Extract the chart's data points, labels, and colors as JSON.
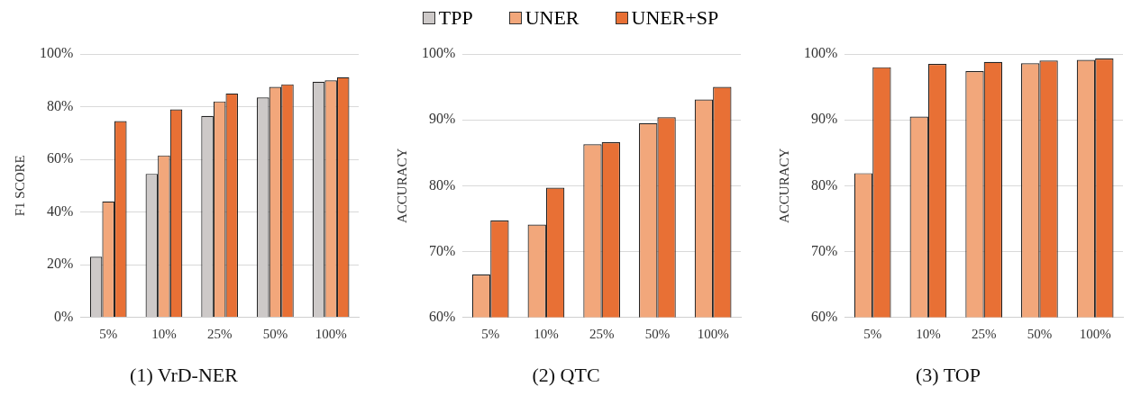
{
  "chart_data": [
    {
      "type": "bar",
      "title": "(1) VrD-NER",
      "ylabel": "F1 SCORE",
      "categories": [
        "5%",
        "10%",
        "25%",
        "50%",
        "100%"
      ],
      "legend": "top",
      "grid": "y",
      "ylim": [
        0,
        100
      ],
      "yticks": [
        {
          "value": 0,
          "label": "0%"
        },
        {
          "value": 20,
          "label": "20%"
        },
        {
          "value": 40,
          "label": "40%"
        },
        {
          "value": 60,
          "label": "60%"
        },
        {
          "value": 80,
          "label": "80%"
        },
        {
          "value": 100,
          "label": "100%"
        }
      ],
      "series": [
        {
          "name": "TPP",
          "color": "#cdc9c8",
          "values": [
            23,
            54.5,
            76.5,
            83.5,
            89.5
          ]
        },
        {
          "name": "UNER",
          "color": "#f2a77b",
          "values": [
            44,
            61.5,
            82,
            87.5,
            90
          ]
        },
        {
          "name": "UNER+SP",
          "color": "#e87035",
          "values": [
            74.5,
            79,
            85,
            88.5,
            91.2
          ]
        }
      ]
    },
    {
      "type": "bar",
      "title": "(2) QTC",
      "ylabel": "ACCURACY",
      "categories": [
        "5%",
        "10%",
        "25%",
        "50%",
        "100%"
      ],
      "grid": "y",
      "ylim": [
        60,
        100
      ],
      "yticks": [
        {
          "value": 60,
          "label": "60%"
        },
        {
          "value": 70,
          "label": "70%"
        },
        {
          "value": 80,
          "label": "80%"
        },
        {
          "value": 90,
          "label": "90%"
        },
        {
          "value": 100,
          "label": "100%"
        }
      ],
      "series": [
        {
          "color": "#f2a77b",
          "values": [
            66.5,
            74.1,
            86.3,
            89.5,
            93.1
          ]
        },
        {
          "color": "#e87035",
          "values": [
            74.7,
            79.7,
            86.6,
            90.4,
            95.0
          ]
        }
      ]
    },
    {
      "type": "bar",
      "title": "(3) TOP",
      "ylabel": "ACCURACY",
      "categories": [
        "5%",
        "10%",
        "25%",
        "50%",
        "100%"
      ],
      "grid": "y",
      "ylim": [
        60,
        100
      ],
      "yticks": [
        {
          "value": 60,
          "label": "60%"
        },
        {
          "value": 70,
          "label": "70%"
        },
        {
          "value": 80,
          "label": "80%"
        },
        {
          "value": 90,
          "label": "90%"
        },
        {
          "value": 100,
          "label": "100%"
        }
      ],
      "series": [
        {
          "color": "#f2a77b",
          "values": [
            81.9,
            90.5,
            97.4,
            98.6,
            99.1
          ]
        },
        {
          "color": "#e87035",
          "values": [
            98.0,
            98.5,
            98.8,
            99.0,
            99.3
          ]
        }
      ]
    }
  ]
}
